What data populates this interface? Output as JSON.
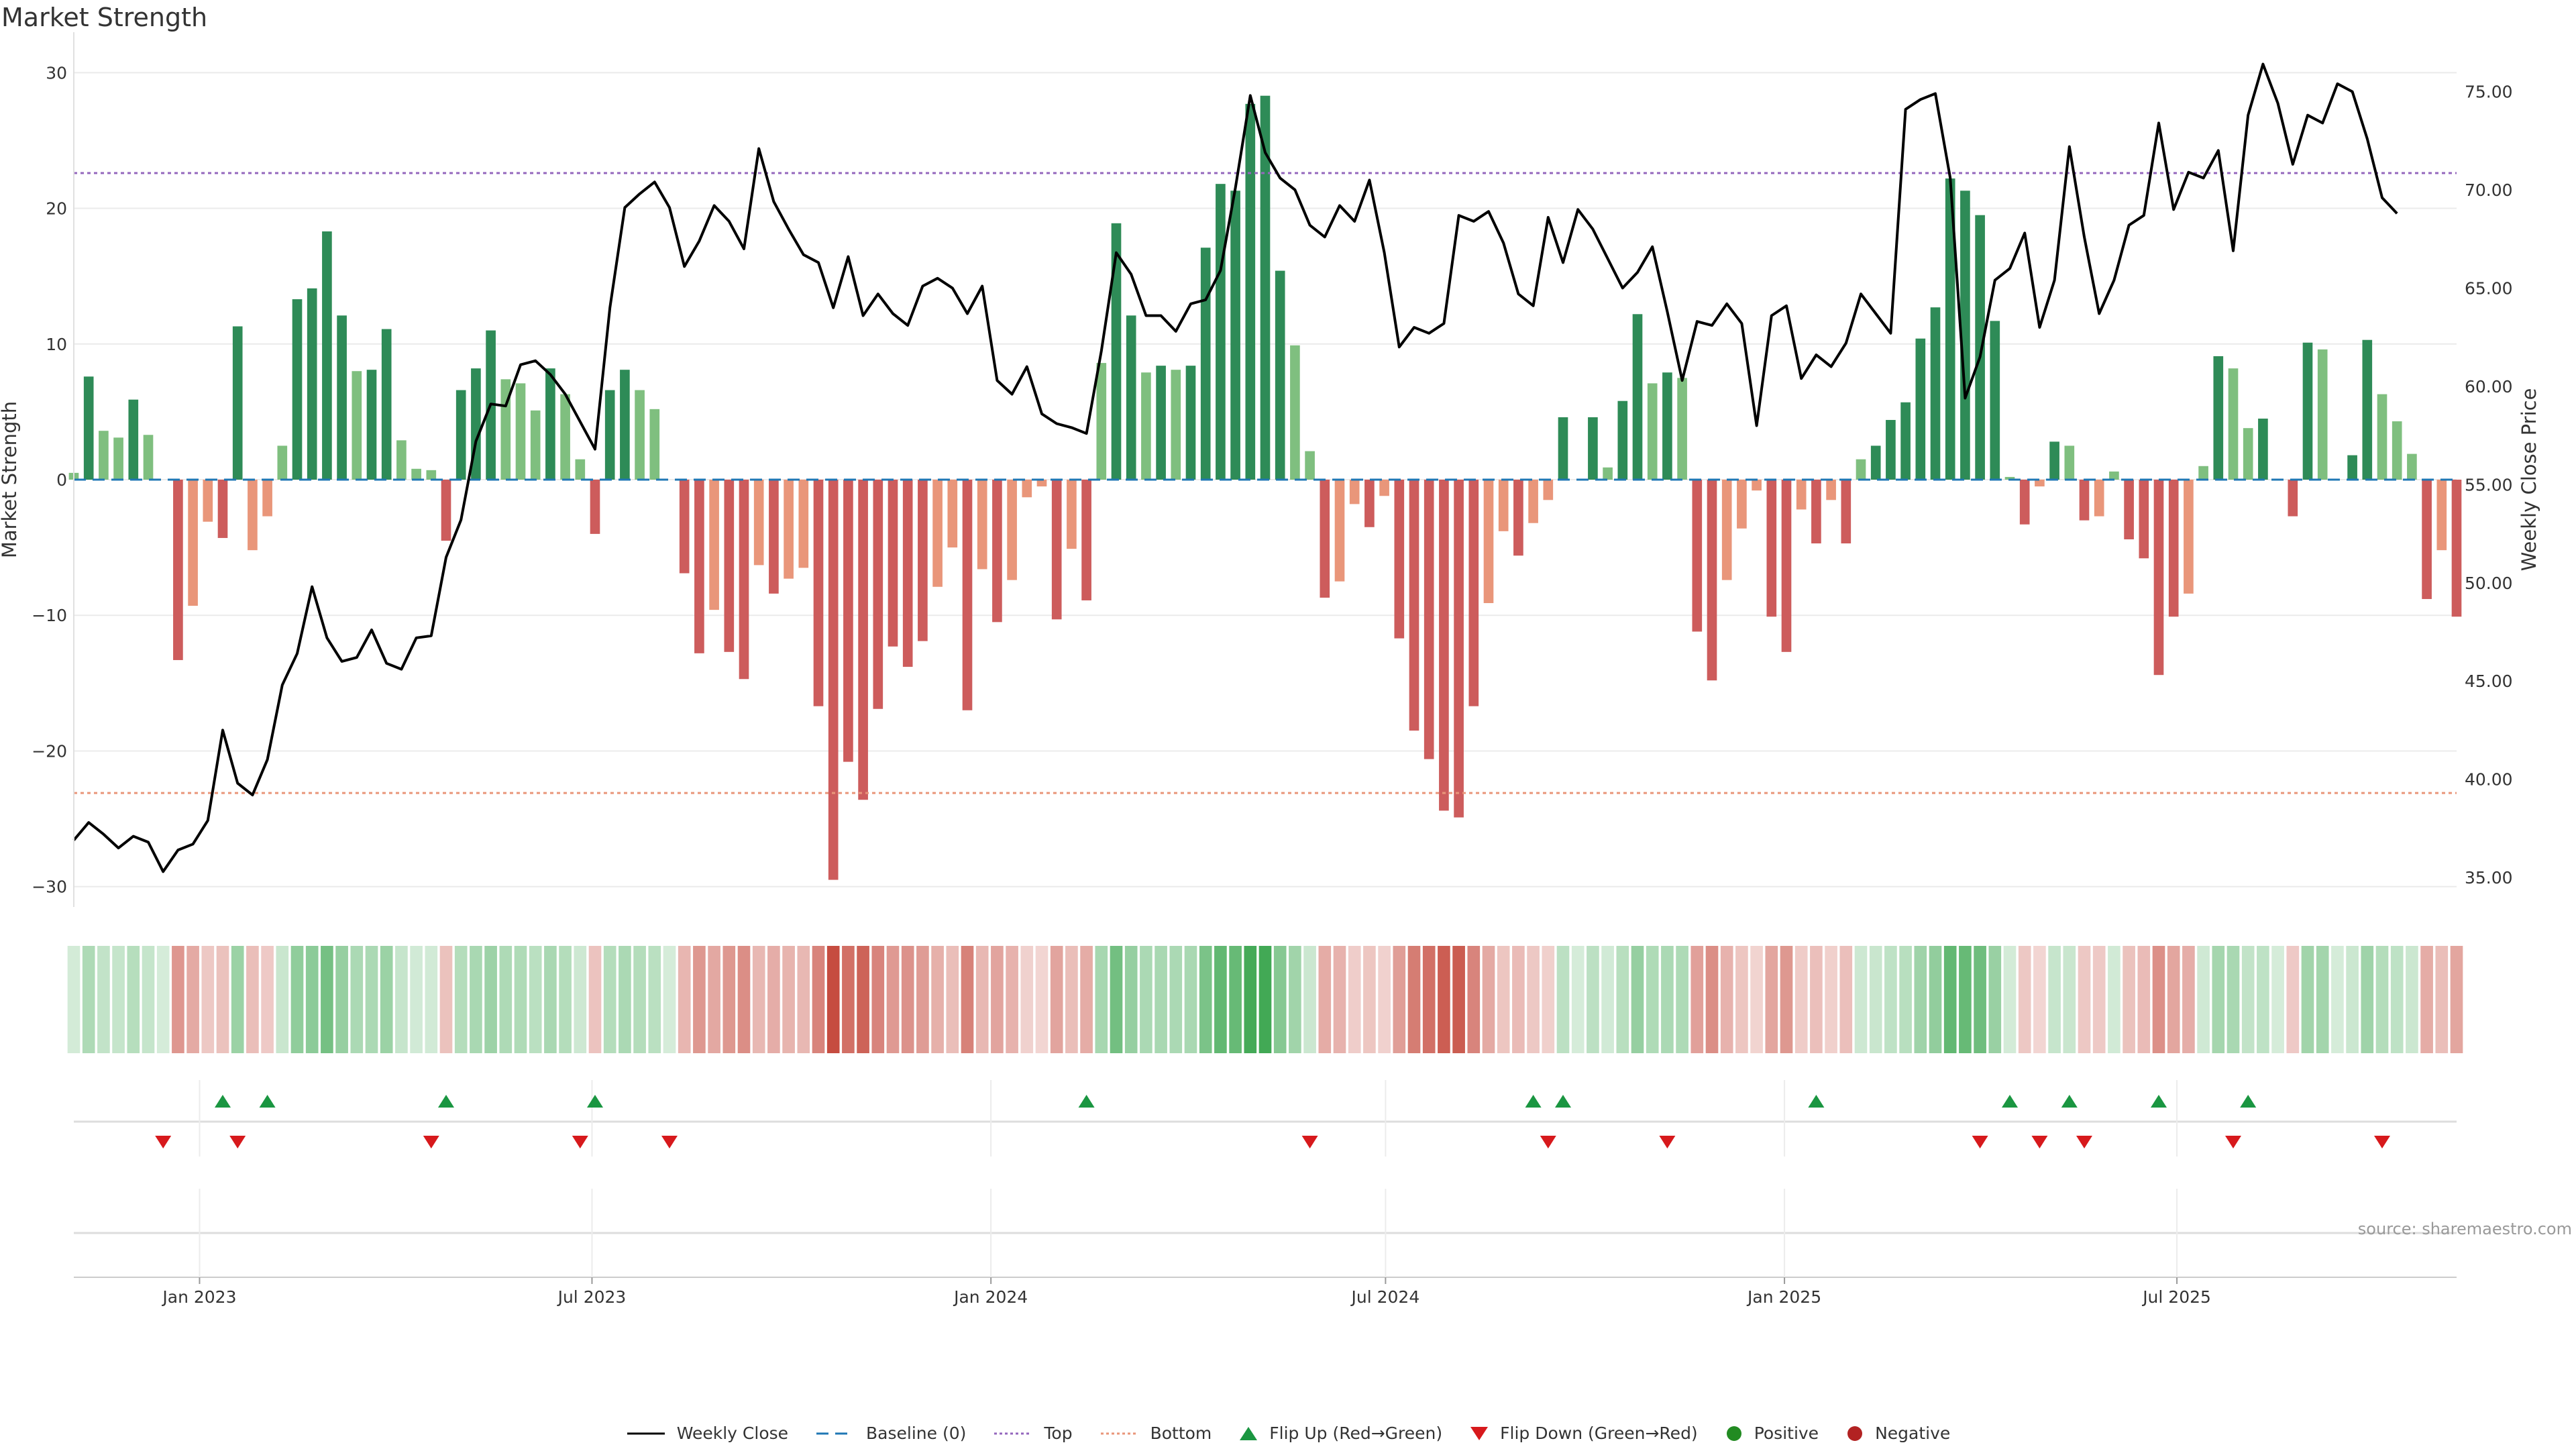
{
  "title": "Market Strength",
  "source": "source: sharemaestro.com",
  "colors": {
    "pos_strong": "#2e8b57",
    "pos_weak": "#7fbf7f",
    "neg_strong": "#cd5c5c",
    "neg_weak": "#e9967a",
    "price": "#000000",
    "baseline": "#1f77b4",
    "top": "#9467bd",
    "bottom": "#e9967a",
    "flip_up": "#1a9641",
    "flip_down": "#d7191c",
    "positive": "#228b22",
    "negative": "#b22222"
  },
  "legend": [
    {
      "key": "close",
      "label": "Weekly Close"
    },
    {
      "key": "baseline",
      "label": "Baseline (0)"
    },
    {
      "key": "top",
      "label": "Top"
    },
    {
      "key": "bottom",
      "label": "Bottom"
    },
    {
      "key": "flip_up",
      "label": "Flip Up (Red→Green)"
    },
    {
      "key": "flip_down",
      "label": "Flip Down (Green→Red)"
    },
    {
      "key": "positive",
      "label": "Positive"
    },
    {
      "key": "negative",
      "label": "Negative"
    }
  ],
  "chart_data": {
    "type": "bar",
    "ylabel": "Market Strength",
    "y2label": "Weekly Close Price",
    "ylim": [
      -31.5,
      31.5
    ],
    "y2lim": [
      33.5,
      77.0
    ],
    "yticks": [
      30,
      20,
      10,
      0,
      -10,
      -20,
      -30
    ],
    "ytick_labels": [
      "30",
      "20",
      "10",
      "0",
      "−10",
      "−20",
      "−30"
    ],
    "y2ticks": [
      "75.00",
      "70.00",
      "65.00",
      "60.00",
      "55.00",
      "50.00",
      "45.00",
      "40.00",
      "35.00"
    ],
    "top_level": 22.6,
    "bottom_level": -23.1,
    "x_start": "2022-11-04",
    "x_end": "2025-11-07",
    "xticks": [
      {
        "date": "2023-01-01",
        "label": "Jan 2023"
      },
      {
        "date": "2023-07-01",
        "label": "Jul 2023"
      },
      {
        "date": "2024-01-01",
        "label": "Jan 2024"
      },
      {
        "date": "2024-07-01",
        "label": "Jul 2024"
      },
      {
        "date": "2025-01-01",
        "label": "Jan 2025"
      },
      {
        "date": "2025-07-01",
        "label": "Jul 2025"
      }
    ],
    "series": [
      {
        "name": "Market Strength",
        "role": "bars",
        "values": [
          0.5,
          7.6,
          3.6,
          3.1,
          5.9,
          3.3,
          0,
          -13.3,
          -9.3,
          -3.1,
          -4.3,
          11.3,
          -5.2,
          -2.7,
          2.5,
          13.3,
          14.1,
          18.3,
          12.1,
          8.0,
          8.1,
          11.1,
          2.9,
          0.8,
          0.7,
          -4.5,
          6.6,
          8.2,
          11.0,
          7.4,
          7.1,
          5.1,
          8.2,
          6.3,
          1.5,
          -4.0,
          6.6,
          8.1,
          6.6,
          5.2,
          0,
          -6.9,
          -12.8,
          -9.6,
          -12.7,
          -14.7,
          -6.3,
          -8.4,
          -7.3,
          -6.5,
          -16.7,
          -29.5,
          -20.8,
          -23.6,
          -16.9,
          -12.3,
          -13.8,
          -11.9,
          -7.9,
          -5.0,
          -17.0,
          -6.6,
          -10.5,
          -7.4,
          -1.3,
          -0.5,
          -10.3,
          -5.1,
          -8.9,
          8.6,
          18.9,
          12.1,
          7.9,
          8.4,
          8.1,
          8.4,
          17.1,
          21.8,
          21.3,
          27.7,
          28.3,
          15.4,
          9.9,
          2.1,
          -8.7,
          -7.5,
          -1.8,
          -3.5,
          -1.2,
          -11.7,
          -18.5,
          -20.6,
          -24.4,
          -24.9,
          -16.7,
          -9.1,
          -3.8,
          -5.6,
          -3.2,
          -1.5,
          4.6,
          0,
          4.6,
          0.9,
          5.8,
          12.2,
          7.1,
          7.9,
          7.5,
          -11.2,
          -14.8,
          -7.4,
          -3.6,
          -0.8,
          -10.1,
          -12.7,
          -2.2,
          -4.7,
          -1.5,
          -4.7,
          1.5,
          2.5,
          4.4,
          5.7,
          10.4,
          12.7,
          22.2,
          21.3,
          19.5,
          11.7,
          0.2,
          -3.3,
          -0.5,
          2.8,
          2.5,
          -3.0,
          -2.7,
          0.6,
          -4.4,
          -5.8,
          -14.4,
          -10.1,
          -8.4,
          1.0,
          9.1,
          8.2,
          3.8,
          4.5,
          0,
          -2.7,
          10.1,
          9.6,
          0,
          1.8,
          10.3,
          6.3,
          4.3,
          1.9,
          -8.8,
          -5.2,
          -10.1
        ]
      },
      {
        "name": "Weekly Close",
        "role": "line",
        "values": [
          36.9,
          37.8,
          37.2,
          36.5,
          37.1,
          36.8,
          35.3,
          36.4,
          36.7,
          37.9,
          42.5,
          39.8,
          39.2,
          41.0,
          44.8,
          46.4,
          49.8,
          47.2,
          46.0,
          46.2,
          47.6,
          45.9,
          45.6,
          47.2,
          47.3,
          51.3,
          53.2,
          57.2,
          59.1,
          59.0,
          61.1,
          61.3,
          60.6,
          59.6,
          58.2,
          56.8,
          64.0,
          69.1,
          69.8,
          70.4,
          69.1,
          66.1,
          67.4,
          69.2,
          68.4,
          67.0,
          72.1,
          69.4,
          68.0,
          66.7,
          66.3,
          64.0,
          66.6,
          63.6,
          64.7,
          63.7,
          63.1,
          65.1,
          65.5,
          65.0,
          63.7,
          65.1,
          60.3,
          59.6,
          61.0,
          58.6,
          58.1,
          57.9,
          57.6,
          61.8,
          66.8,
          65.7,
          63.6,
          63.6,
          62.8,
          64.2,
          64.4,
          65.9,
          70.1,
          74.8,
          71.9,
          70.6,
          70.0,
          68.2,
          67.6,
          69.2,
          68.4,
          70.5,
          66.8,
          62.0,
          63.0,
          62.7,
          63.2,
          68.7,
          68.4,
          68.9,
          67.3,
          64.7,
          64.1,
          68.6,
          66.3,
          69.0,
          68.0,
          66.5,
          65.0,
          65.8,
          67.1,
          63.8,
          60.3,
          63.3,
          63.1,
          64.2,
          63.2,
          58.0,
          63.6,
          64.1,
          60.4,
          61.6,
          61.0,
          62.2,
          64.7,
          63.7,
          62.7,
          74.1,
          74.6,
          74.9,
          70.6,
          59.4,
          61.5,
          65.4,
          66.0,
          67.8,
          63.0,
          65.4,
          72.2,
          67.6,
          63.7,
          65.4,
          68.2,
          68.7,
          73.4,
          69.0,
          70.9,
          70.6,
          72.0,
          66.9,
          73.8,
          76.4,
          74.4,
          71.3,
          73.8,
          73.4,
          75.4,
          75.0,
          72.6,
          69.6,
          68.8
        ]
      }
    ],
    "heat_strip": "shade of each weekly bar's strength (green = positive, red = negative)",
    "flip_up_weeks": [
      10,
      13,
      25,
      35,
      68,
      98,
      100,
      117,
      130,
      134,
      140,
      146
    ],
    "flip_down_weeks": [
      6,
      11,
      24,
      34,
      40,
      83,
      99,
      107,
      128,
      132,
      135,
      145,
      155
    ]
  }
}
